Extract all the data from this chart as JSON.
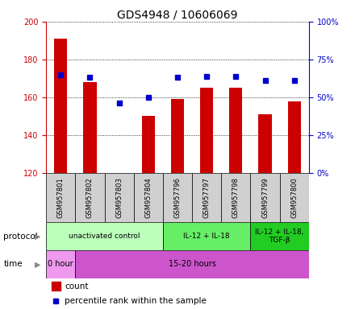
{
  "title": "GDS4948 / 10606069",
  "samples": [
    "GSM957801",
    "GSM957802",
    "GSM957803",
    "GSM957804",
    "GSM957796",
    "GSM957797",
    "GSM957798",
    "GSM957799",
    "GSM957800"
  ],
  "counts": [
    191,
    168,
    120,
    150,
    159,
    165,
    165,
    151,
    158
  ],
  "percentile_ranks": [
    65,
    63,
    46,
    50,
    63,
    64,
    64,
    61,
    61
  ],
  "ylim_left": [
    120,
    200
  ],
  "ylim_right": [
    0,
    100
  ],
  "yticks_left": [
    120,
    140,
    160,
    180,
    200
  ],
  "yticks_right": [
    0,
    25,
    50,
    75,
    100
  ],
  "bar_color": "#cc0000",
  "dot_color": "#0000cc",
  "bar_bottom": 120,
  "protocol_groups": [
    {
      "label": "unactivated control",
      "start": 0,
      "end": 4,
      "color": "#bbffbb"
    },
    {
      "label": "IL-12 + IL-18",
      "start": 4,
      "end": 7,
      "color": "#66ee66"
    },
    {
      "label": "IL-12 + IL-18,\nTGF-β",
      "start": 7,
      "end": 9,
      "color": "#22cc22"
    }
  ],
  "time_groups": [
    {
      "label": "0 hour",
      "start": 0,
      "end": 1,
      "color": "#ee99ee"
    },
    {
      "label": "15-20 hours",
      "start": 1,
      "end": 9,
      "color": "#cc55cc"
    }
  ],
  "legend_items": [
    {
      "color": "#cc0000",
      "label": "count"
    },
    {
      "color": "#0000cc",
      "label": "percentile rank within the sample"
    }
  ],
  "sample_box_color": "#d0d0d0",
  "left_axis_color": "#cc0000",
  "right_axis_color": "#0000cc",
  "title_fontsize": 10,
  "tick_fontsize": 7,
  "label_fontsize": 8
}
